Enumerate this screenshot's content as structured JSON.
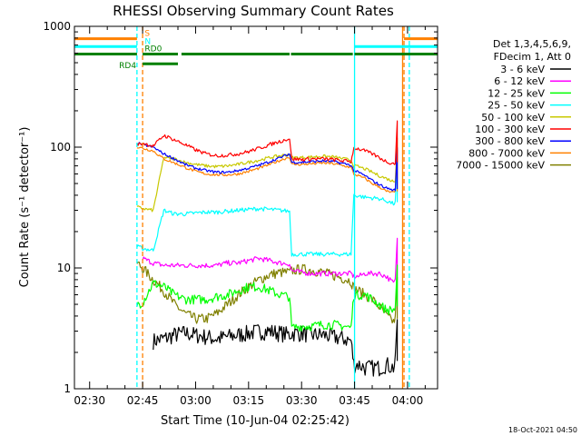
{
  "chart_data": {
    "type": "line",
    "title": "RHESSI Observing Summary Count Rates",
    "xlabel": "Start Time (10-Jun-04 02:25:42)",
    "ylabel": "Count Rate (s⁻¹ detector⁻¹)",
    "yscale": "log",
    "ylim": [
      1,
      1000
    ],
    "xlim_minutes": [
      -4.3,
      98.5
    ],
    "x_ticks": [
      {
        "label": "02:30",
        "minute": 0
      },
      {
        "label": "02:45",
        "minute": 15
      },
      {
        "label": "03:00",
        "minute": 30
      },
      {
        "label": "03:15",
        "minute": 45
      },
      {
        "label": "03:30",
        "minute": 60
      },
      {
        "label": "03:45",
        "minute": 75
      },
      {
        "label": "04:00",
        "minute": 90
      }
    ],
    "y_ticks": [
      {
        "label": "1",
        "value": 1
      },
      {
        "label": "10",
        "value": 10
      },
      {
        "label": "100",
        "value": 100
      },
      {
        "label": "1000",
        "value": 1000
      }
    ],
    "legend_header": [
      "Det 1,3,4,5,6,9,",
      "FDecim 1, Att 0"
    ],
    "x_minutes": [
      13.4,
      15,
      18,
      21,
      24,
      27,
      30,
      33,
      36,
      39,
      42,
      45,
      48,
      51,
      54,
      56.6,
      57.2,
      60,
      63,
      66,
      69,
      72,
      74,
      74.8,
      76,
      78,
      80,
      82,
      84,
      86,
      86.8
    ],
    "series": [
      {
        "name": "3 - 6 keV",
        "color": "#000000",
        "values": [
          null,
          null,
          2.5,
          2.6,
          2.8,
          2.9,
          2.8,
          2.7,
          2.6,
          2.7,
          2.8,
          2.9,
          3.0,
          3.0,
          2.9,
          2.8,
          2.9,
          2.9,
          2.8,
          2.8,
          2.7,
          2.6,
          2.5,
          1.6,
          1.6,
          1.5,
          1.5,
          1.5,
          1.6,
          1.5,
          1.7
        ]
      },
      {
        "name": "6 - 12 keV",
        "color": "#ff00ff",
        "values": [
          null,
          12.0,
          11.0,
          10.5,
          10.5,
          10.5,
          10.5,
          10.5,
          10.5,
          11.0,
          11.0,
          11.5,
          12.0,
          11.5,
          11.0,
          10.8,
          9.5,
          9.2,
          9.0,
          9.0,
          9.0,
          9.0,
          9.0,
          8.5,
          8.5,
          9.0,
          9.0,
          9.0,
          8.5,
          7.5,
          8.0
        ]
      },
      {
        "name": "12 - 25 keV",
        "color": "#00ff00",
        "values": [
          5.0,
          5.2,
          7.5,
          7.0,
          6.0,
          5.5,
          5.5,
          5.5,
          5.8,
          6.0,
          6.5,
          7.0,
          7.0,
          6.5,
          6.0,
          5.8,
          3.2,
          3.3,
          3.3,
          3.4,
          3.4,
          3.3,
          3.2,
          6.0,
          6.0,
          6.0,
          5.5,
          5.0,
          4.5,
          4.5,
          4.8
        ]
      },
      {
        "name": "25 - 50 keV",
        "color": "#00ffff",
        "values": [
          15.0,
          14.5,
          14.0,
          30.0,
          28.0,
          28.0,
          28.5,
          29.0,
          29.0,
          29.5,
          30.0,
          30.5,
          31.0,
          30.5,
          30.0,
          29.5,
          13.0,
          13.0,
          13.0,
          13.0,
          13.0,
          13.0,
          13.0,
          40.0,
          39.5,
          38.5,
          38.0,
          37.5,
          36.0,
          34.0,
          35.0
        ]
      },
      {
        "name": "50 - 100 keV",
        "color": "#c8c800",
        "values": [
          32.0,
          31.0,
          30.0,
          82.0,
          80.0,
          75.0,
          72.0,
          70.0,
          69.0,
          70.0,
          72.0,
          75.0,
          78.0,
          82.0,
          85.0,
          87.0,
          82.0,
          82.0,
          83.0,
          84.0,
          83.0,
          80.0,
          78.0,
          70.0,
          69.0,
          66.0,
          62.0,
          58.0,
          55.0,
          52.0,
          54.0
        ]
      },
      {
        "name": "100 - 300 keV",
        "color": "#ff0000",
        "values": [
          105.0,
          108.0,
          102.0,
          125.0,
          115.0,
          105.0,
          95.0,
          88.0,
          85.0,
          86.0,
          88.0,
          92.0,
          98.0,
          105.0,
          112.0,
          118.0,
          80.0,
          79.0,
          80.0,
          80.0,
          79.0,
          77.0,
          76.0,
          98.0,
          97.0,
          93.0,
          88.0,
          82.0,
          76.0,
          73.0,
          75.0
        ]
      },
      {
        "name": "300 - 800 keV",
        "color": "#0000ff",
        "values": [
          108.0,
          105.0,
          100.0,
          88.0,
          80.0,
          72.0,
          67.0,
          64.0,
          62.0,
          62.0,
          64.0,
          67.0,
          71.0,
          76.0,
          82.0,
          88.0,
          75.0,
          75.0,
          76.0,
          77.0,
          76.0,
          73.0,
          71.0,
          64.0,
          62.0,
          58.0,
          53.0,
          49.0,
          46.0,
          44.0,
          45.0
        ]
      },
      {
        "name": "800 - 7000 keV",
        "color": "#ff8000",
        "values": [
          100.0,
          98.0,
          93.0,
          80.0,
          74.0,
          68.0,
          63.0,
          60.0,
          59.0,
          59.0,
          60.0,
          63.0,
          67.0,
          72.0,
          78.0,
          83.0,
          72.0,
          72.0,
          73.0,
          74.0,
          73.0,
          70.0,
          68.0,
          60.0,
          58.0,
          55.0,
          50.0,
          47.0,
          43.0,
          42.0,
          43.0
        ]
      },
      {
        "name": "7000 - 15000 keV",
        "color": "#808000",
        "values": [
          11.0,
          10.0,
          8.0,
          6.5,
          5.0,
          4.2,
          3.8,
          3.8,
          4.2,
          5.0,
          6.0,
          7.0,
          8.0,
          8.8,
          9.2,
          9.2,
          9.5,
          9.8,
          9.6,
          9.2,
          8.7,
          8.2,
          7.8,
          6.8,
          6.5,
          6.0,
          5.5,
          4.8,
          4.0,
          3.6,
          3.8
        ]
      }
    ],
    "spike_minutes": 87.1,
    "spike_scale": 2.2,
    "state_bars": {
      "S": {
        "label": "S",
        "color": "#ff8000",
        "value": 790,
        "intervals": [
          [
            -4.3,
            13.4
          ],
          [
            89.0,
            98.5
          ]
        ]
      },
      "N": {
        "label": "N",
        "color": "#00ffff",
        "value": 680,
        "intervals": [
          [
            -4.3,
            13.4
          ],
          [
            75.0,
            98.5
          ]
        ]
      },
      "RD0": {
        "label": "RD0",
        "color": "#008000",
        "value": 590,
        "intervals": [
          [
            -4.3,
            13.4
          ],
          [
            15.0,
            25.0
          ],
          [
            26.0,
            56.6
          ],
          [
            57.0,
            74.5
          ],
          [
            75.0,
            98.5
          ]
        ]
      },
      "RD4": {
        "label": "RD4",
        "color": "#008000",
        "value": 490,
        "intervals": [
          [
            15.0,
            25.0
          ]
        ]
      }
    },
    "markers": [
      {
        "minute": 13.4,
        "color": "#00ffff",
        "style": "dashed"
      },
      {
        "minute": 15.0,
        "color": "#ff8000",
        "style": "dashed"
      },
      {
        "minute": 89.0,
        "color": "#ff8000",
        "style": "dashed"
      },
      {
        "minute": 90.5,
        "color": "#00ffff",
        "style": "dashed"
      },
      {
        "minute": 75.0,
        "color": "#00ffff",
        "style": "solid"
      },
      {
        "minute": 88.6,
        "color": "#ff8000",
        "style": "solid"
      }
    ]
  },
  "footer": {
    "date_stamp": "18-Oct-2021 04:50"
  }
}
